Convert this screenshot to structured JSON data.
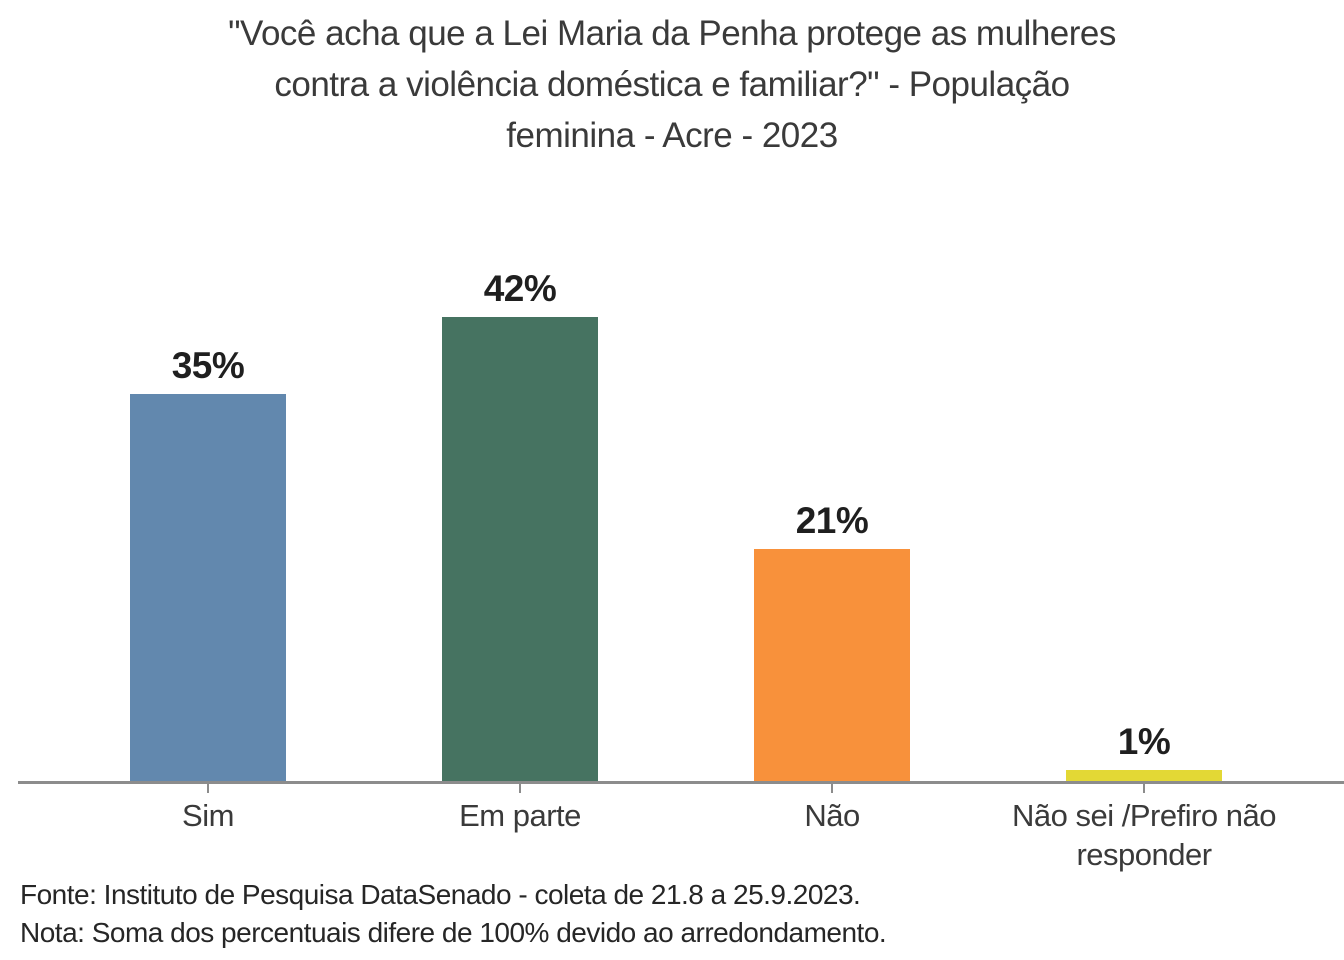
{
  "title": {
    "text": "\"Você acha que a Lei Maria da Penha protege as mulheres contra a violência doméstica e familiar?\" - População feminina - Acre - 2023",
    "lines": [
      "\"Você acha que a Lei Maria da Penha protege as mulheres",
      "contra a violência doméstica e familiar?\" - População",
      "feminina - Acre - 2023"
    ]
  },
  "chart_data": {
    "type": "bar",
    "title": "\"Você acha que a Lei Maria da Penha protege as mulheres contra a violência doméstica e familiar?\" - População feminina - Acre - 2023",
    "categories": [
      "Sim",
      "Em parte",
      "Não",
      "Não sei /Prefiro não responder"
    ],
    "values": [
      35,
      42,
      21,
      1
    ],
    "value_labels": [
      "35%",
      "42%",
      "21%",
      "1%"
    ],
    "colors": [
      "#6288AE",
      "#467361",
      "#F8913B",
      "#E3D835"
    ],
    "xlabel": "",
    "ylabel": "",
    "ylim": [
      0,
      45
    ],
    "grid": false,
    "legend": "none",
    "axis_color": "#8C8C8C",
    "background": "#FFFFFF"
  },
  "footer": {
    "source": "Fonte: Instituto de Pesquisa DataSenado - coleta de 21.8 a 25.9.2023.",
    "note": "Nota: Soma dos percentuais difere de 100% devido ao arredondamento."
  }
}
